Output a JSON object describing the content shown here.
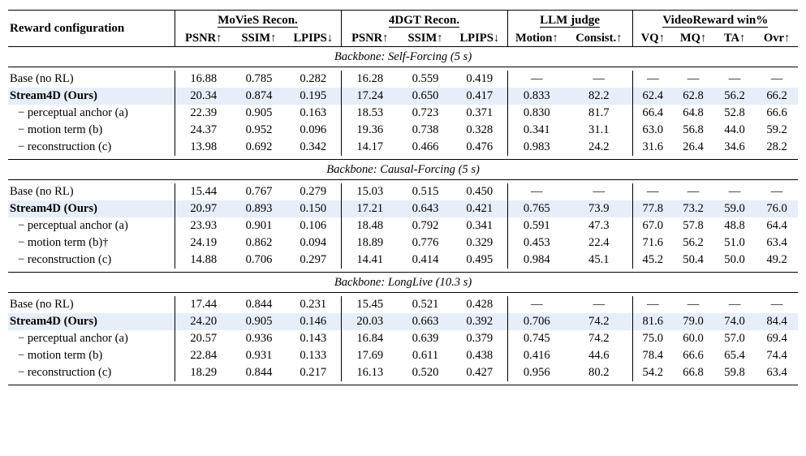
{
  "header": {
    "config": "Reward configuration",
    "groups": [
      "MoVieS Recon.",
      "4DGT Recon.",
      "LLM judge",
      "VideoReward win%"
    ],
    "metrics": [
      "PSNR↑",
      "SSIM↑",
      "LPIPS↓",
      "PSNR↑",
      "SSIM↑",
      "LPIPS↓",
      "Motion↑",
      "Consist.↑",
      "VQ↑",
      "MQ↑",
      "TA↑",
      "Ovr↑"
    ]
  },
  "sections": [
    {
      "title": "Backbone: Self-Forcing (5 s)",
      "rows": [
        {
          "label": "Base (no RL)",
          "ours": false,
          "indent": false,
          "values": [
            "16.88",
            "0.785",
            "0.282",
            "16.28",
            "0.559",
            "0.419",
            "—",
            "—",
            "—",
            "—",
            "—",
            "—"
          ]
        },
        {
          "label": "Stream4D (Ours)",
          "ours": true,
          "indent": false,
          "values": [
            "20.34",
            "0.874",
            "0.195",
            "17.24",
            "0.650",
            "0.417",
            "0.833",
            "82.2",
            "62.4",
            "62.8",
            "56.2",
            "66.2"
          ]
        },
        {
          "label": "− perceptual anchor (a)",
          "ours": false,
          "indent": true,
          "values": [
            "22.39",
            "0.905",
            "0.163",
            "18.53",
            "0.723",
            "0.371",
            "0.830",
            "81.7",
            "66.4",
            "64.8",
            "52.8",
            "66.6"
          ]
        },
        {
          "label": "− motion term (b)",
          "ours": false,
          "indent": true,
          "values": [
            "24.37",
            "0.952",
            "0.096",
            "19.36",
            "0.738",
            "0.328",
            "0.341",
            "31.1",
            "63.0",
            "56.8",
            "44.0",
            "59.2"
          ]
        },
        {
          "label": "− reconstruction (c)",
          "ours": false,
          "indent": true,
          "values": [
            "13.98",
            "0.692",
            "0.342",
            "14.17",
            "0.466",
            "0.476",
            "0.983",
            "24.2",
            "31.6",
            "26.4",
            "34.6",
            "28.2"
          ]
        }
      ]
    },
    {
      "title": "Backbone: Causal-Forcing (5 s)",
      "rows": [
        {
          "label": "Base (no RL)",
          "ours": false,
          "indent": false,
          "values": [
            "15.44",
            "0.767",
            "0.279",
            "15.03",
            "0.515",
            "0.450",
            "—",
            "—",
            "—",
            "—",
            "—",
            "—"
          ]
        },
        {
          "label": "Stream4D (Ours)",
          "ours": true,
          "indent": false,
          "values": [
            "20.97",
            "0.893",
            "0.150",
            "17.21",
            "0.643",
            "0.421",
            "0.765",
            "73.9",
            "77.8",
            "73.2",
            "59.0",
            "76.0"
          ]
        },
        {
          "label": "− perceptual anchor (a)",
          "ours": false,
          "indent": true,
          "values": [
            "23.93",
            "0.901",
            "0.106",
            "18.48",
            "0.792",
            "0.341",
            "0.591",
            "47.3",
            "67.0",
            "57.8",
            "48.8",
            "64.4"
          ]
        },
        {
          "label": "− motion term (b)†",
          "ours": false,
          "indent": true,
          "values": [
            "24.19",
            "0.862",
            "0.094",
            "18.89",
            "0.776",
            "0.329",
            "0.453",
            "22.4",
            "71.6",
            "56.2",
            "51.0",
            "63.4"
          ]
        },
        {
          "label": "− reconstruction (c)",
          "ours": false,
          "indent": true,
          "values": [
            "14.88",
            "0.706",
            "0.297",
            "14.41",
            "0.414",
            "0.495",
            "0.984",
            "45.1",
            "45.2",
            "50.4",
            "50.0",
            "49.2"
          ]
        }
      ]
    },
    {
      "title": "Backbone: LongLive (10.3 s)",
      "rows": [
        {
          "label": "Base (no RL)",
          "ours": false,
          "indent": false,
          "values": [
            "17.44",
            "0.844",
            "0.231",
            "15.45",
            "0.521",
            "0.428",
            "—",
            "—",
            "—",
            "—",
            "—",
            "—"
          ]
        },
        {
          "label": "Stream4D (Ours)",
          "ours": true,
          "indent": false,
          "values": [
            "24.20",
            "0.905",
            "0.146",
            "20.03",
            "0.663",
            "0.392",
            "0.706",
            "74.2",
            "81.6",
            "79.0",
            "74.0",
            "84.4"
          ]
        },
        {
          "label": "− perceptual anchor (a)",
          "ours": false,
          "indent": true,
          "values": [
            "20.57",
            "0.936",
            "0.143",
            "16.84",
            "0.639",
            "0.379",
            "0.745",
            "74.2",
            "75.0",
            "60.0",
            "57.0",
            "69.4"
          ]
        },
        {
          "label": "− motion term (b)",
          "ours": false,
          "indent": true,
          "values": [
            "22.84",
            "0.931",
            "0.133",
            "17.69",
            "0.611",
            "0.438",
            "0.416",
            "44.6",
            "78.4",
            "66.6",
            "65.4",
            "74.4"
          ]
        },
        {
          "label": "− reconstruction (c)",
          "ours": false,
          "indent": true,
          "values": [
            "18.29",
            "0.844",
            "0.217",
            "16.13",
            "0.520",
            "0.427",
            "0.956",
            "80.2",
            "54.2",
            "66.8",
            "59.8",
            "63.4"
          ]
        }
      ]
    }
  ]
}
